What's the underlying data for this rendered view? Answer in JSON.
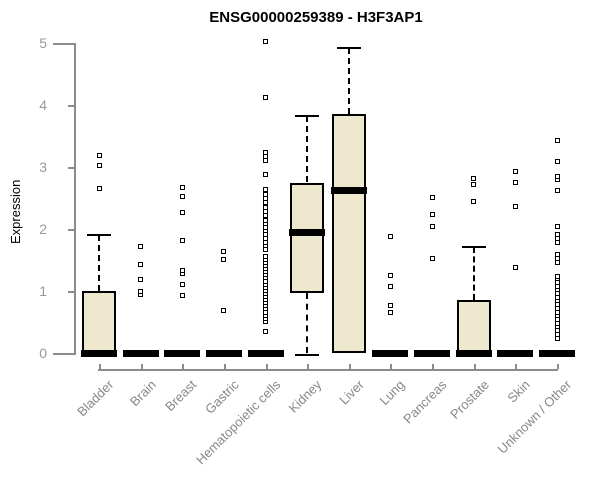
{
  "chart_data": {
    "type": "boxplot",
    "title": "ENSG00000259389 - H3F3AP1",
    "ylabel": "Expression",
    "xlabel": "",
    "ylim": [
      0,
      5
    ],
    "yticks": [
      "0",
      "1",
      "2",
      "3",
      "4",
      "5"
    ],
    "grid": false,
    "legend": false,
    "colors": {
      "box_fill": "#EDE8CE",
      "box_border": "#000000",
      "median": "#000000",
      "outlier_border": "#000000",
      "axis": "#8C8C8C",
      "ytick_label": "#999999",
      "xtick_label": "#888888",
      "title": "#000000",
      "background": "#FFFFFF"
    },
    "categories": [
      "Bladder",
      "Brain",
      "Breast",
      "Gastric",
      "Hematopoietic cells",
      "Kidney",
      "Liver",
      "Lung",
      "Pancreas",
      "Prostate",
      "Skin",
      "Unknown / Other"
    ],
    "series": [
      {
        "category": "Bladder",
        "whisker_low": 0,
        "q1": 0,
        "median": 0,
        "q3": 1.0,
        "whisker_high": 1.9,
        "outliers": [
          2.65,
          3.03,
          3.19
        ]
      },
      {
        "category": "Brain",
        "whisker_low": 0,
        "q1": 0,
        "median": 0,
        "q3": 0,
        "whisker_high": 0,
        "outliers": [
          0.95,
          1.0,
          1.19,
          1.43,
          1.72
        ]
      },
      {
        "category": "Breast",
        "whisker_low": 0,
        "q1": 0,
        "median": 0,
        "q3": 0,
        "whisker_high": 0,
        "outliers": [
          0.93,
          1.11,
          1.28,
          1.33,
          1.82,
          2.27,
          2.53,
          2.67
        ]
      },
      {
        "category": "Gastric",
        "whisker_low": 0,
        "q1": 0,
        "median": 0,
        "q3": 0,
        "whisker_high": 0,
        "outliers": [
          0.68,
          1.51,
          1.64
        ]
      },
      {
        "category": "Hematopoietic cells",
        "whisker_low": 0,
        "q1": 0,
        "median": 0,
        "q3": 0,
        "whisker_high": 0,
        "outliers": [
          0.34,
          0.51,
          0.56,
          0.61,
          0.66,
          0.71,
          0.76,
          0.81,
          0.86,
          0.91,
          0.96,
          1.01,
          1.06,
          1.11,
          1.16,
          1.21,
          1.26,
          1.31,
          1.36,
          1.41,
          1.46,
          1.51,
          1.56,
          1.67,
          1.73,
          1.79,
          1.85,
          1.91,
          1.97,
          2.03,
          2.09,
          2.13,
          2.21,
          2.28,
          2.35,
          2.42,
          2.49,
          2.56,
          2.63,
          2.88,
          3.1,
          3.17,
          3.24,
          4.12,
          5.02
        ]
      },
      {
        "category": "Kidney",
        "whisker_low": 0,
        "q1": 0.97,
        "median": 1.94,
        "q3": 2.75,
        "whisker_high": 3.82,
        "outliers": []
      },
      {
        "category": "Liver",
        "whisker_low": 0,
        "q1": 0,
        "median": 2.62,
        "q3": 3.86,
        "whisker_high": 4.92,
        "outliers": []
      },
      {
        "category": "Lung",
        "whisker_low": 0,
        "q1": 0,
        "median": 0,
        "q3": 0,
        "whisker_high": 0,
        "outliers": [
          0.66,
          0.76,
          1.08,
          1.25,
          1.88
        ]
      },
      {
        "category": "Pancreas",
        "whisker_low": 0,
        "q1": 0,
        "median": 0,
        "q3": 0,
        "whisker_high": 0,
        "outliers": [
          1.53,
          2.04,
          2.23,
          2.51
        ]
      },
      {
        "category": "Prostate",
        "whisker_low": 0,
        "q1": 0,
        "median": 0,
        "q3": 0.85,
        "whisker_high": 1.71,
        "outliers": [
          2.44,
          2.71,
          2.82
        ]
      },
      {
        "category": "Skin",
        "whisker_low": 0,
        "q1": 0,
        "median": 0,
        "q3": 0,
        "whisker_high": 0,
        "outliers": [
          1.38,
          2.36,
          2.75,
          2.93
        ]
      },
      {
        "category": "Unknown / Other",
        "whisker_low": 0,
        "q1": 0,
        "median": 0,
        "q3": 0,
        "whisker_high": 0,
        "outliers": [
          0.23,
          0.3,
          0.36,
          0.42,
          0.48,
          0.54,
          0.6,
          0.66,
          0.72,
          0.78,
          0.84,
          0.9,
          0.96,
          1.02,
          1.08,
          1.14,
          1.2,
          1.24,
          1.46,
          1.53,
          1.59,
          1.78,
          1.85,
          1.91,
          2.04,
          2.62,
          2.8,
          2.84,
          3.09,
          3.42
        ]
      }
    ]
  }
}
